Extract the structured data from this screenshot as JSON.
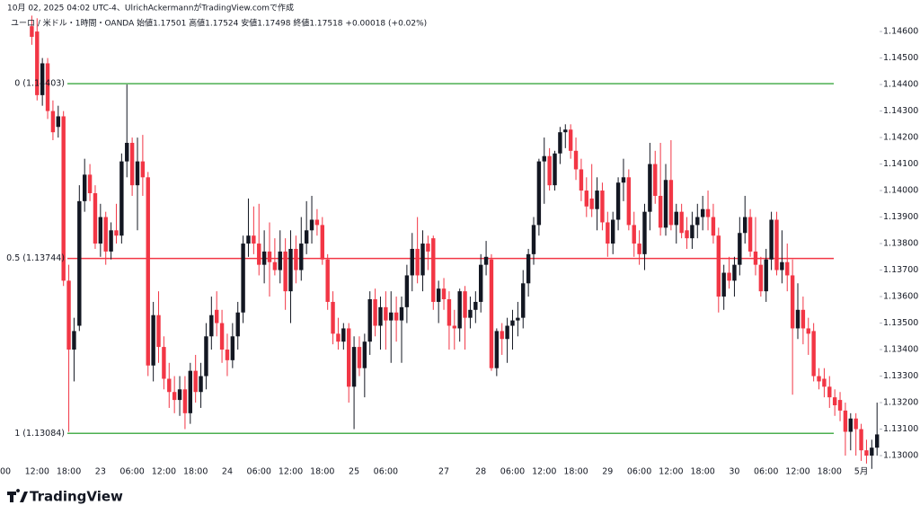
{
  "header": {
    "created": "10月 02, 2025 04:02 UTC-4、UlrichAckermannがTradingView.comで作成",
    "legend": "ユーロ / 米ドル・1時間・OANDA  始値1.17501  高値1.17524  安値1.17498  終値1.17518  +0.00018 (+0.02%)"
  },
  "footer": {
    "brand": "TradingView"
  },
  "chart_data": {
    "type": "candlestick",
    "up_color": "#131722",
    "down_color": "#f23645",
    "categories": [
      "00",
      null,
      null,
      null,
      null,
      null,
      "12:00",
      null,
      null,
      null,
      null,
      null,
      "18:00",
      null,
      null,
      null,
      null,
      null,
      "23",
      null,
      null,
      null,
      null,
      null,
      "06:00",
      null,
      null,
      null,
      null,
      null,
      "12:00",
      null,
      null,
      null,
      null,
      null,
      "18:00",
      null,
      null,
      null,
      null,
      null,
      "24",
      null,
      null,
      null,
      null,
      null,
      "06:00",
      null,
      null,
      null,
      null,
      null,
      "12:00",
      null,
      null,
      null,
      null,
      null,
      "18:00",
      null,
      null,
      null,
      null,
      null,
      "25",
      null,
      null,
      null,
      null,
      null,
      "06:00",
      null,
      null,
      null,
      null,
      null,
      null,
      null,
      null,
      null,
      null,
      "27",
      null,
      null,
      null,
      null,
      null,
      null,
      "28",
      null,
      null,
      null,
      null,
      null,
      "06:00",
      null,
      null,
      null,
      null,
      null,
      "12:00",
      null,
      null,
      null,
      null,
      null,
      "18:00",
      null,
      null,
      null,
      null,
      null,
      "29",
      null,
      null,
      null,
      null,
      null,
      "06:00",
      null,
      null,
      null,
      null,
      null,
      "12:00",
      null,
      null,
      null,
      null,
      null,
      "18:00",
      null,
      null,
      null,
      null,
      null,
      "30",
      null,
      null,
      null,
      null,
      null,
      "06:00",
      null,
      null,
      null,
      null,
      null,
      "12:00",
      null,
      null,
      null,
      null,
      null,
      "18:00",
      null,
      null,
      null,
      null,
      null,
      "5月",
      null,
      null,
      null
    ],
    "open": [
      null,
      null,
      null,
      null,
      null,
      1.1462,
      1.146,
      1.1436,
      1.1448,
      1.143,
      1.1424,
      1.1428,
      1.1366,
      1.134,
      1.1349,
      1.1396,
      1.1406,
      1.1399,
      1.138,
      1.139,
      1.1377,
      1.1385,
      1.1383,
      1.1411,
      1.1418,
      1.1402,
      1.1411,
      1.1405,
      1.1334,
      1.1353,
      1.1341,
      1.1329,
      1.1324,
      1.1321,
      1.1325,
      1.1316,
      1.1332,
      1.1324,
      1.133,
      1.1345,
      1.1355,
      1.135,
      1.134,
      1.1336,
      1.1345,
      1.1354,
      1.138,
      1.1383,
      1.138,
      1.1372,
      1.1377,
      1.1373,
      1.137,
      1.1377,
      1.1362,
      1.1378,
      1.137,
      1.138,
      1.1385,
      1.1389,
      1.1387,
      1.1374,
      1.1358,
      1.1346,
      1.1343,
      1.1348,
      1.1326,
      1.1341,
      1.1333,
      1.1343,
      1.1359,
      1.1349,
      1.1356,
      1.1351,
      1.1354,
      1.1351,
      1.1356,
      1.1368,
      1.1378,
      1.1368,
      1.138,
      1.1382,
      1.1358,
      1.1363,
      1.1359,
      1.1349,
      1.1348,
      1.1362,
      1.1352,
      1.1355,
      1.1358,
      1.1372,
      1.1374,
      1.1333,
      1.1347,
      1.1344,
      1.1349,
      1.1351,
      1.1352,
      1.1365,
      1.1376,
      1.1387,
      1.1411,
      1.1413,
      1.1402,
      1.1414,
      1.1422,
      1.1423,
      1.1415,
      1.1408,
      1.14,
      1.1397,
      1.1393,
      1.14,
      1.1388,
      1.138,
      1.1389,
      1.1403,
      1.1405,
      1.1387,
      1.138,
      1.1376,
      1.1392,
      1.141,
      1.1398,
      1.1386,
      1.1404,
      1.1387,
      1.1392,
      1.1385,
      1.1382,
      1.1387,
      1.139,
      1.1393,
      1.139,
      1.1383,
      1.136,
      1.1369,
      1.1366,
      1.1372,
      1.1384,
      1.139,
      1.1377,
      1.1372,
      1.1362,
      1.1374,
      1.1389,
      1.137,
      1.1373,
      1.1368,
      1.1348,
      1.1355,
      1.1348,
      1.1347,
      1.133,
      1.1329,
      1.1326,
      1.1322,
      1.1321,
      1.1317,
      1.1309,
      1.1314,
      1.131,
      1.1302,
      1.13,
      1.1303
    ],
    "high": [
      null,
      null,
      null,
      null,
      null,
      1.1466,
      1.1465,
      1.145,
      1.145,
      1.1434,
      1.1432,
      1.143,
      1.1372,
      1.1352,
      1.1402,
      1.1412,
      1.141,
      1.1402,
      1.1395,
      1.1392,
      1.1388,
      1.1395,
      1.1414,
      1.144,
      1.142,
      1.142,
      1.1421,
      1.1407,
      1.1358,
      1.1362,
      1.1345,
      1.1335,
      1.133,
      1.133,
      1.133,
      1.1335,
      1.1338,
      1.1335,
      1.135,
      1.136,
      1.1362,
      1.1355,
      1.1346,
      1.135,
      1.1358,
      1.1383,
      1.1397,
      1.1394,
      1.1395,
      1.1385,
      1.1388,
      1.1382,
      1.1385,
      1.1382,
      1.1385,
      1.1383,
      1.139,
      1.1396,
      1.1398,
      1.1393,
      1.139,
      1.1376,
      1.1362,
      1.1352,
      1.135,
      1.135,
      1.1345,
      1.1345,
      1.1346,
      1.1362,
      1.1363,
      1.136,
      1.1362,
      1.1362,
      1.136,
      1.136,
      1.1372,
      1.1384,
      1.139,
      1.1385,
      1.1383,
      1.1383,
      1.1366,
      1.1367,
      1.1362,
      1.1355,
      1.1363,
      1.1364,
      1.136,
      1.1362,
      1.1376,
      1.1381,
      1.1376,
      1.1348,
      1.135,
      1.1352,
      1.1355,
      1.1358,
      1.137,
      1.1378,
      1.139,
      1.1412,
      1.142,
      1.1416,
      1.1415,
      1.1424,
      1.1425,
      1.1425,
      1.142,
      1.1412,
      1.1405,
      1.141,
      1.1405,
      1.1403,
      1.1392,
      1.1392,
      1.1405,
      1.1412,
      1.1408,
      1.1392,
      1.1385,
      1.1395,
      1.1418,
      1.1415,
      1.1418,
      1.141,
      1.1419,
      1.1395,
      1.1395,
      1.139,
      1.1392,
      1.1395,
      1.1398,
      1.14,
      1.1395,
      1.1386,
      1.1372,
      1.1375,
      1.1375,
      1.139,
      1.1398,
      1.1393,
      1.139,
      1.1375,
      1.1378,
      1.1392,
      1.1392,
      1.1385,
      1.138,
      1.1374,
      1.1365,
      1.136,
      1.1352,
      1.135,
      1.1333,
      1.1333,
      1.133,
      1.1325,
      1.1324,
      1.132,
      1.1316,
      1.1316,
      1.1312,
      1.1306,
      1.1306,
      1.132
    ],
    "low": [
      null,
      null,
      null,
      null,
      null,
      1.1455,
      1.1434,
      1.1432,
      1.1427,
      1.1419,
      1.142,
      1.1364,
      1.1309,
      1.1328,
      1.1347,
      1.1392,
      1.1396,
      1.1378,
      1.1375,
      1.1372,
      1.1374,
      1.138,
      1.138,
      1.1405,
      1.1398,
      1.1385,
      1.1398,
      1.133,
      1.1328,
      1.1335,
      1.1325,
      1.1318,
      1.1316,
      1.1315,
      1.131,
      1.1312,
      1.132,
      1.1318,
      1.1325,
      1.134,
      1.1345,
      1.1335,
      1.133,
      1.1333,
      1.134,
      1.135,
      1.1375,
      1.1376,
      1.1368,
      1.1365,
      1.136,
      1.1368,
      1.1365,
      1.1355,
      1.135,
      1.1365,
      1.1366,
      1.1376,
      1.138,
      1.1383,
      1.1372,
      1.1355,
      1.1342,
      1.134,
      1.134,
      1.132,
      1.131,
      1.133,
      1.1322,
      1.1338,
      1.1345,
      1.134,
      1.134,
      1.1335,
      1.1343,
      1.1335,
      1.135,
      1.1362,
      1.1365,
      1.1362,
      1.137,
      1.1355,
      1.135,
      1.1355,
      1.134,
      1.134,
      1.1343,
      1.134,
      1.1348,
      1.135,
      1.1354,
      1.1368,
      1.1332,
      1.133,
      1.1338,
      1.1335,
      1.134,
      1.1345,
      1.1348,
      1.136,
      1.1372,
      1.1383,
      1.1395,
      1.14,
      1.14,
      1.141,
      1.1416,
      1.1412,
      1.1404,
      1.1396,
      1.139,
      1.139,
      1.1385,
      1.1385,
      1.1375,
      1.1376,
      1.1385,
      1.1396,
      1.1385,
      1.1375,
      1.1372,
      1.137,
      1.1385,
      1.1395,
      1.1383,
      1.1383,
      1.1385,
      1.138,
      1.1382,
      1.1378,
      1.1378,
      1.1382,
      1.1385,
      1.1385,
      1.138,
      1.1354,
      1.1355,
      1.1363,
      1.136,
      1.1368,
      1.138,
      1.1375,
      1.1368,
      1.136,
      1.1358,
      1.137,
      1.1368,
      1.1365,
      1.1362,
      1.1323,
      1.1344,
      1.1342,
      1.1338,
      1.1328,
      1.1325,
      1.1322,
      1.1318,
      1.1315,
      1.1313,
      1.13,
      1.1302,
      1.13,
      1.1298,
      1.1297,
      1.1295,
      1.13
    ],
    "close": [
      null,
      null,
      null,
      null,
      null,
      1.1458,
      1.1436,
      1.1448,
      1.143,
      1.1422,
      1.1428,
      1.1366,
      1.134,
      1.1347,
      1.1396,
      1.1406,
      1.1399,
      1.138,
      1.139,
      1.1377,
      1.1385,
      1.1383,
      1.1411,
      1.1418,
      1.1402,
      1.1411,
      1.1405,
      1.1334,
      1.1353,
      1.1341,
      1.1329,
      1.1324,
      1.1321,
      1.1325,
      1.1316,
      1.1332,
      1.1324,
      1.133,
      1.1345,
      1.1353,
      1.135,
      1.134,
      1.1336,
      1.1345,
      1.1354,
      1.138,
      1.1383,
      1.138,
      1.1372,
      1.1377,
      1.1373,
      1.137,
      1.1377,
      1.1362,
      1.1378,
      1.137,
      1.138,
      1.1385,
      1.1389,
      1.1387,
      1.1374,
      1.1358,
      1.1346,
      1.1343,
      1.1348,
      1.1326,
      1.1341,
      1.1333,
      1.1343,
      1.1359,
      1.1349,
      1.1356,
      1.1351,
      1.1354,
      1.1351,
      1.1356,
      1.1368,
      1.1378,
      1.1368,
      1.138,
      1.1377,
      1.1358,
      1.1363,
      1.1359,
      1.1349,
      1.1348,
      1.1362,
      1.1352,
      1.1355,
      1.1358,
      1.1372,
      1.1375,
      1.1333,
      1.1347,
      1.1344,
      1.1349,
      1.1351,
      1.1352,
      1.1365,
      1.1376,
      1.1387,
      1.1411,
      1.1413,
      1.1402,
      1.1414,
      1.1422,
      1.1423,
      1.1415,
      1.1408,
      1.14,
      1.1394,
      1.1393,
      1.14,
      1.1388,
      1.138,
      1.1389,
      1.1403,
      1.1405,
      1.1387,
      1.138,
      1.1376,
      1.1392,
      1.141,
      1.1398,
      1.1386,
      1.1404,
      1.1387,
      1.1392,
      1.1384,
      1.1382,
      1.1387,
      1.139,
      1.1393,
      1.139,
      1.1383,
      1.136,
      1.1369,
      1.1366,
      1.1372,
      1.1384,
      1.139,
      1.1377,
      1.1372,
      1.1362,
      1.1374,
      1.1389,
      1.137,
      1.1373,
      1.1368,
      1.1348,
      1.1355,
      1.1348,
      1.1346,
      1.133,
      1.1328,
      1.1326,
      1.1322,
      1.1319,
      1.1317,
      1.1309,
      1.1314,
      1.131,
      1.1302,
      1.13,
      1.1303,
      1.1308
    ],
    "ylim": [
      1.12973,
      1.14685
    ],
    "yticks": [
      {
        "value": 1.146,
        "label": "1.14600"
      },
      {
        "value": 1.145,
        "label": "1.14500"
      },
      {
        "value": 1.144,
        "label": "1.14400"
      },
      {
        "value": 1.143,
        "label": "1.14300"
      },
      {
        "value": 1.142,
        "label": "1.14200"
      },
      {
        "value": 1.141,
        "label": "1.14100"
      },
      {
        "value": 1.14,
        "label": "1.14000"
      },
      {
        "value": 1.139,
        "label": "1.13900"
      },
      {
        "value": 1.138,
        "label": "1.13800"
      },
      {
        "value": 1.137,
        "label": "1.13700"
      },
      {
        "value": 1.136,
        "label": "1.13600"
      },
      {
        "value": 1.135,
        "label": "1.13500"
      },
      {
        "value": 1.134,
        "label": "1.13400"
      },
      {
        "value": 1.133,
        "label": "1.13300"
      },
      {
        "value": 1.132,
        "label": "1.13200"
      },
      {
        "value": 1.131,
        "label": "1.13100"
      },
      {
        "value": 1.13,
        "label": "1.13000"
      }
    ],
    "levels": [
      {
        "label": "0 (1.14403)",
        "value": 1.14403,
        "color": "#4caf50"
      },
      {
        "label": "0.5 (1.13744)",
        "value": 1.13744,
        "color": "#f23645"
      },
      {
        "label": "1 (1.13084)",
        "value": 1.13084,
        "color": "#4caf50"
      }
    ]
  }
}
